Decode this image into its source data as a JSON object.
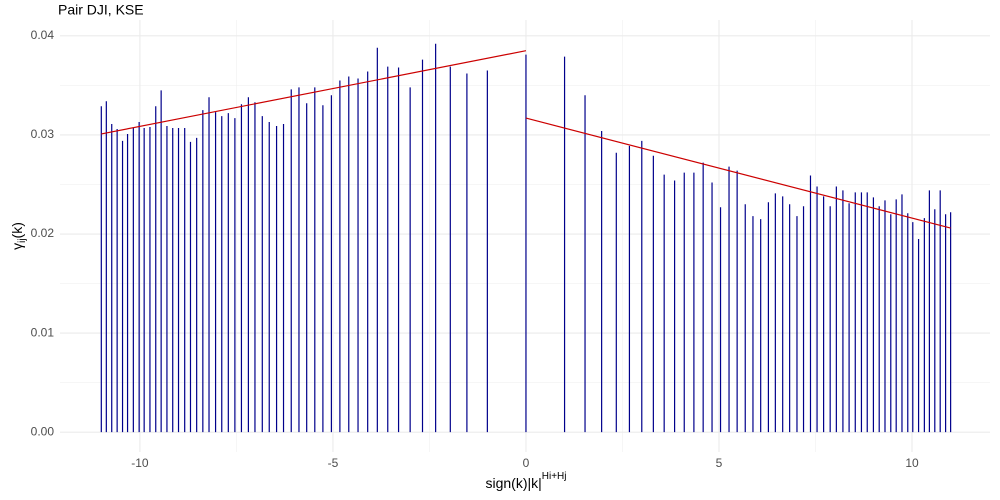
{
  "chart_data": {
    "type": "spike",
    "title": "Pair DJI, KSE",
    "x_label": [
      "sign(k)|k|",
      "Hi+Hj"
    ],
    "y_label": [
      "γ",
      "ij",
      "(k)"
    ],
    "xlim": [
      -12.07,
      12.02
    ],
    "ylim": [
      -0.002,
      0.0416
    ],
    "xticks": [
      -10,
      -5,
      0,
      5,
      10
    ],
    "yticks": [
      {
        "value": 0,
        "label": "0.00"
      },
      0.01,
      0.02,
      0.03,
      0.04
    ],
    "grid": true,
    "minor_grid": true,
    "series": [
      {
        "type": "spike",
        "color": "#00008b",
        "x": [
          -11.0,
          -10.87,
          -10.73,
          -10.59,
          -10.45,
          -10.32,
          -10.17,
          -10.02,
          -9.89,
          -9.74,
          -9.59,
          -9.45,
          -9.3,
          -9.15,
          -9.0,
          -8.84,
          -8.69,
          -8.53,
          -8.37,
          -8.21,
          -8.04,
          -7.88,
          -7.71,
          -7.54,
          -7.37,
          -7.19,
          -7.02,
          -6.83,
          -6.65,
          -6.46,
          -6.28,
          -6.08,
          -5.88,
          -5.68,
          -5.47,
          -5.26,
          -5.04,
          -4.82,
          -4.59,
          -4.35,
          -4.1,
          -3.85,
          -3.58,
          -3.3,
          -3.0,
          -2.68,
          -2.34,
          -1.96,
          -1.53,
          -1.0,
          0,
          1.0,
          1.53,
          1.96,
          2.34,
          2.68,
          3.0,
          3.3,
          3.58,
          3.85,
          4.1,
          4.35,
          4.59,
          4.82,
          5.04,
          5.26,
          5.47,
          5.68,
          5.88,
          6.08,
          6.28,
          6.46,
          6.65,
          6.83,
          7.02,
          7.19,
          7.37,
          7.54,
          7.71,
          7.88,
          8.04,
          8.21,
          8.37,
          8.53,
          8.69,
          8.84,
          9.0,
          9.15,
          9.3,
          9.45,
          9.59,
          9.74,
          9.89,
          10.02,
          10.17,
          10.32,
          10.45,
          10.59,
          10.73,
          10.87,
          11.0
        ],
        "values": [
          0.0329,
          0.0334,
          0.0311,
          0.0306,
          0.0294,
          0.0301,
          0.0307,
          0.0313,
          0.0307,
          0.0308,
          0.0329,
          0.0345,
          0.0309,
          0.0307,
          0.0307,
          0.0307,
          0.0293,
          0.0297,
          0.0325,
          0.0338,
          0.0323,
          0.0319,
          0.0322,
          0.0317,
          0.0331,
          0.0338,
          0.0333,
          0.0319,
          0.0313,
          0.0309,
          0.0311,
          0.0346,
          0.0348,
          0.0332,
          0.0348,
          0.033,
          0.034,
          0.0355,
          0.0359,
          0.0357,
          0.0364,
          0.0388,
          0.0369,
          0.0368,
          0.0348,
          0.0376,
          0.0392,
          0.0369,
          0.0362,
          0.0365,
          0.0381,
          0.0379,
          0.034,
          0.0304,
          0.0282,
          0.0289,
          0.0294,
          0.0279,
          0.026,
          0.0254,
          0.0262,
          0.0262,
          0.0272,
          0.0252,
          0.0227,
          0.0268,
          0.0264,
          0.023,
          0.0218,
          0.0215,
          0.0232,
          0.0241,
          0.0238,
          0.023,
          0.0218,
          0.0228,
          0.0259,
          0.0248,
          0.0238,
          0.0228,
          0.0248,
          0.0244,
          0.0231,
          0.0242,
          0.0242,
          0.0242,
          0.0237,
          0.0228,
          0.0234,
          0.022,
          0.0235,
          0.024,
          0.0221,
          0.0212,
          0.0195,
          0.0216,
          0.0244,
          0.0225,
          0.0244,
          0.022,
          0.0222
        ]
      },
      {
        "type": "line",
        "color": "#cc0000",
        "x": [
          -11,
          0
        ],
        "values": [
          0.0301,
          0.0385
        ]
      },
      {
        "type": "line",
        "color": "#cc0000",
        "x": [
          0,
          11
        ],
        "values": [
          0.0317,
          0.0206
        ]
      }
    ]
  }
}
